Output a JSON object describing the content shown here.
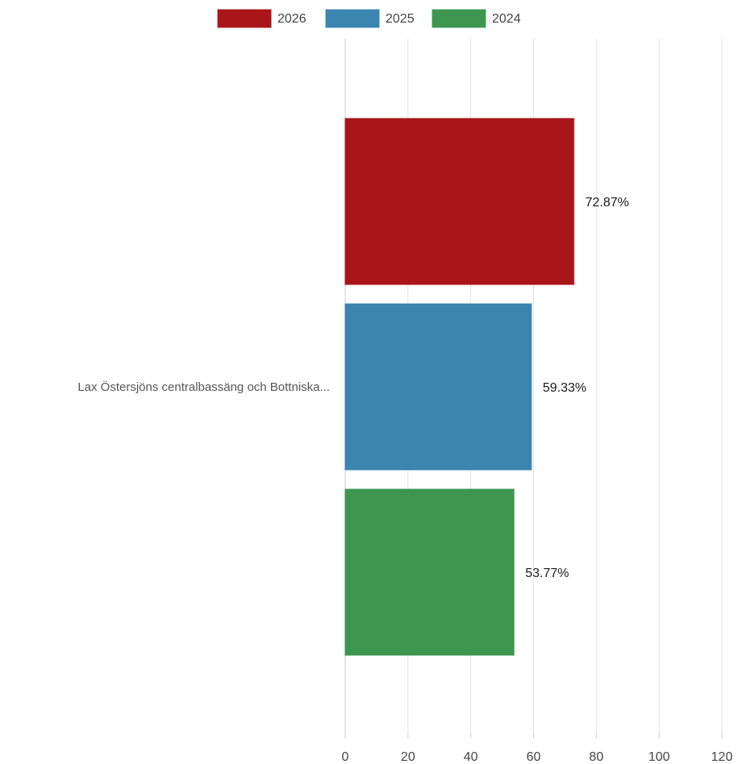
{
  "chart_data": {
    "type": "bar",
    "orientation": "horizontal",
    "categories": [
      "Lax Östersjöns centralbassäng och Bottniska..."
    ],
    "series": [
      {
        "name": "2026",
        "values": [
          72.87
        ],
        "labels": [
          "72.87%"
        ],
        "color": "#a91519"
      },
      {
        "name": "2025",
        "values": [
          59.33
        ],
        "labels": [
          "59.33%"
        ],
        "color": "#3b85b0"
      },
      {
        "name": "2024",
        "values": [
          53.77
        ],
        "labels": [
          "53.77%"
        ],
        "color": "#3d9650"
      }
    ],
    "xlim": [
      0,
      120
    ],
    "x_ticks": [
      "0",
      "20",
      "40",
      "60",
      "80",
      "100",
      "120"
    ],
    "grid": true,
    "legend_position": "top"
  }
}
